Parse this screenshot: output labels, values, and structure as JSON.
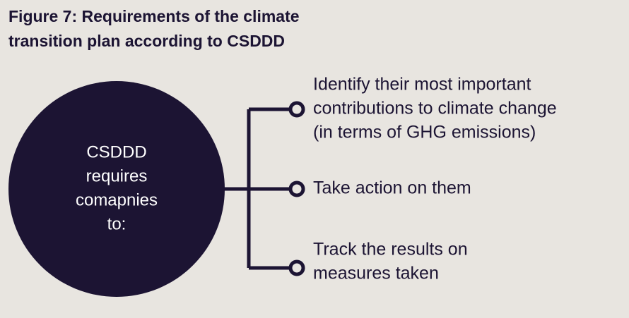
{
  "title": [
    "Figure 7: Requirements of the climate",
    "transition plan according to CSDDD"
  ],
  "center": {
    "lines": [
      "CSDDD",
      "requires",
      "comapnies",
      "to:"
    ]
  },
  "items": [
    {
      "lines": [
        "Identify their most important",
        "contributions to climate change",
        "(in terms of GHG emissions)"
      ]
    },
    {
      "lines": [
        "Take action on them"
      ]
    },
    {
      "lines": [
        "Track the results on",
        "measures taken"
      ]
    }
  ]
}
